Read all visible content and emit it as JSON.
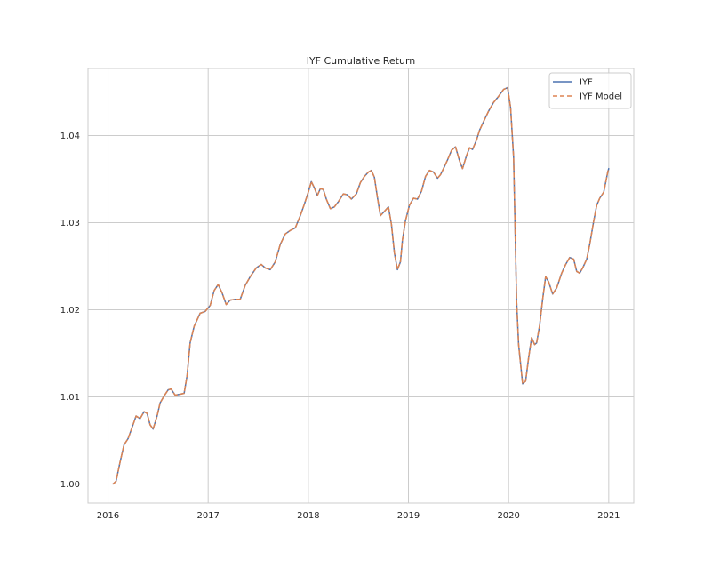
{
  "chart_data": {
    "type": "line",
    "title": "IYF Cumulative Return",
    "xlabel": "",
    "ylabel": "",
    "x_ticks": [
      2016,
      2017,
      2018,
      2019,
      2020,
      2021
    ],
    "y_ticks": [
      1.0,
      1.01,
      1.02,
      1.03,
      1.04
    ],
    "y_tick_labels": [
      "1.00",
      "1.01",
      "1.02",
      "1.03",
      "1.04"
    ],
    "xlim": [
      2015.8,
      2021.25
    ],
    "ylim": [
      0.9978,
      1.0477
    ],
    "grid": true,
    "legend_position": "top-right",
    "series": [
      {
        "name": "IYF",
        "color": "#4c72b0",
        "style": "solid"
      },
      {
        "name": "IYF Model",
        "color": "#dd8452",
        "style": "dashed"
      }
    ],
    "x": [
      2016.05,
      2016.08,
      2016.12,
      2016.16,
      2016.2,
      2016.25,
      2016.28,
      2016.32,
      2016.36,
      2016.39,
      2016.42,
      2016.45,
      2016.49,
      2016.52,
      2016.56,
      2016.6,
      2016.63,
      2016.67,
      2016.72,
      2016.76,
      2016.79,
      2016.82,
      2016.86,
      2016.92,
      2016.97,
      2017.02,
      2017.06,
      2017.1,
      2017.14,
      2017.18,
      2017.22,
      2017.27,
      2017.32,
      2017.37,
      2017.42,
      2017.48,
      2017.53,
      2017.57,
      2017.62,
      2017.67,
      2017.72,
      2017.77,
      2017.82,
      2017.87,
      2017.92,
      2017.96,
      2018.0,
      2018.03,
      2018.06,
      2018.09,
      2018.12,
      2018.15,
      2018.18,
      2018.22,
      2018.26,
      2018.3,
      2018.35,
      2018.39,
      2018.43,
      2018.48,
      2018.52,
      2018.56,
      2018.6,
      2018.63,
      2018.66,
      2018.69,
      2018.72,
      2018.76,
      2018.8,
      2018.83,
      2018.86,
      2018.89,
      2018.92,
      2018.94,
      2018.97,
      2019.01,
      2019.05,
      2019.09,
      2019.13,
      2019.17,
      2019.21,
      2019.25,
      2019.29,
      2019.32,
      2019.35,
      2019.39,
      2019.43,
      2019.47,
      2019.51,
      2019.54,
      2019.58,
      2019.61,
      2019.64,
      2019.68,
      2019.71,
      2019.75,
      2019.8,
      2019.85,
      2019.9,
      2019.95,
      2019.99,
      2020.02,
      2020.05,
      2020.08,
      2020.1,
      2020.14,
      2020.17,
      2020.2,
      2020.23,
      2020.26,
      2020.28,
      2020.31,
      2020.34,
      2020.37,
      2020.4,
      2020.44,
      2020.48,
      2020.53,
      2020.57,
      2020.61,
      2020.65,
      2020.68,
      2020.71,
      2020.74,
      2020.78,
      2020.81,
      2020.85,
      2020.88,
      2020.91,
      2020.95,
      2020.99,
      2021.0
    ],
    "y": [
      1.0,
      1.0003,
      1.0025,
      1.0045,
      1.0052,
      1.0068,
      1.0078,
      1.0075,
      1.0083,
      1.0081,
      1.0068,
      1.0063,
      1.0078,
      1.0093,
      1.0101,
      1.0108,
      1.0109,
      1.0102,
      1.0103,
      1.0104,
      1.0125,
      1.0162,
      1.0181,
      1.0196,
      1.0198,
      1.0205,
      1.0222,
      1.0229,
      1.0219,
      1.0206,
      1.0211,
      1.0212,
      1.0212,
      1.0228,
      1.0238,
      1.0248,
      1.0252,
      1.0248,
      1.0246,
      1.0255,
      1.0275,
      1.0287,
      1.0291,
      1.0294,
      1.0308,
      1.0321,
      1.0335,
      1.0347,
      1.034,
      1.0331,
      1.0339,
      1.0338,
      1.0327,
      1.0316,
      1.0318,
      1.0324,
      1.0333,
      1.0332,
      1.0327,
      1.0333,
      1.0346,
      1.0353,
      1.0358,
      1.036,
      1.0352,
      1.0329,
      1.0308,
      1.0313,
      1.0318,
      1.0298,
      1.0265,
      1.0246,
      1.0255,
      1.028,
      1.0302,
      1.032,
      1.0328,
      1.0327,
      1.0336,
      1.0353,
      1.036,
      1.0358,
      1.0351,
      1.0355,
      1.0362,
      1.0372,
      1.0383,
      1.0387,
      1.0371,
      1.0362,
      1.0377,
      1.0386,
      1.0384,
      1.0395,
      1.0406,
      1.0416,
      1.0428,
      1.0438,
      1.0445,
      1.0453,
      1.0455,
      1.0432,
      1.0375,
      1.021,
      1.016,
      1.0115,
      1.0118,
      1.0145,
      1.0168,
      1.016,
      1.0162,
      1.0182,
      1.0212,
      1.0238,
      1.0232,
      1.0218,
      1.0225,
      1.0242,
      1.0252,
      1.026,
      1.0258,
      1.0244,
      1.0242,
      1.0248,
      1.0258,
      1.0275,
      1.0302,
      1.032,
      1.0328,
      1.0335,
      1.0358,
      1.0362
    ]
  }
}
